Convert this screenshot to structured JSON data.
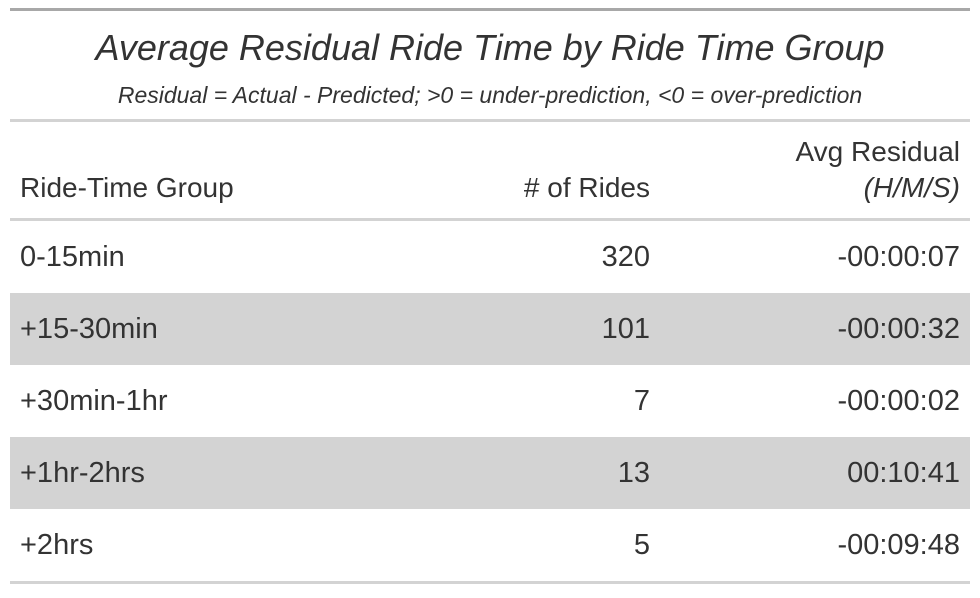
{
  "title": "Average Residual Ride Time by Ride Time Group",
  "subtitle": "Residual = Actual - Predicted; >0 = under-prediction, <0 = over-prediction",
  "columns": {
    "group": "Ride-Time Group",
    "rides": "# of Rides",
    "residual_line1": "Avg Residual",
    "residual_line2": "(H/M/S)"
  },
  "rows": [
    {
      "group": "0-15min",
      "rides": "320",
      "residual": "-00:00:07"
    },
    {
      "group": "+15-30min",
      "rides": "101",
      "residual": "-00:00:32"
    },
    {
      "group": "+30min-1hr",
      "rides": "7",
      "residual": "-00:00:02"
    },
    {
      "group": "+1hr-2hrs",
      "rides": "13",
      "residual": "00:10:41"
    },
    {
      "group": "+2hrs",
      "rides": "5",
      "residual": "-00:09:48"
    }
  ],
  "colors": {
    "stripe": "#d3d3d3",
    "rule": "#d3d3d3",
    "top_rule": "#a8a8a8",
    "text": "#333333"
  }
}
